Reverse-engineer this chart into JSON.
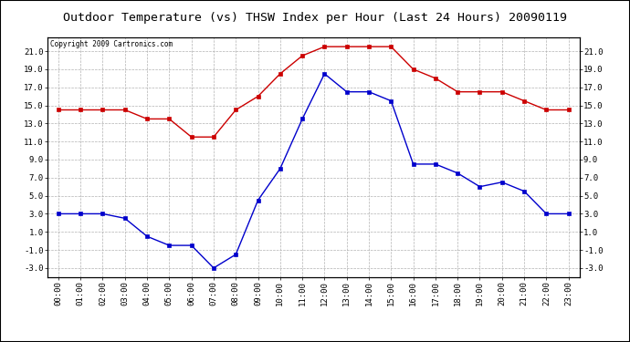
{
  "title": "Outdoor Temperature (vs) THSW Index per Hour (Last 24 Hours) 20090119",
  "copyright": "Copyright 2009 Cartronics.com",
  "hours": [
    "00:00",
    "01:00",
    "02:00",
    "03:00",
    "04:00",
    "05:00",
    "06:00",
    "07:00",
    "08:00",
    "09:00",
    "10:00",
    "11:00",
    "12:00",
    "13:00",
    "14:00",
    "15:00",
    "16:00",
    "17:00",
    "18:00",
    "19:00",
    "20:00",
    "21:00",
    "22:00",
    "23:00"
  ],
  "red_data": [
    14.5,
    14.5,
    14.5,
    14.5,
    13.5,
    13.5,
    11.5,
    11.5,
    14.5,
    16.0,
    18.5,
    20.5,
    21.5,
    21.5,
    21.5,
    21.5,
    19.0,
    18.0,
    16.5,
    16.5,
    16.5,
    15.5,
    14.5,
    14.5
  ],
  "blue_data": [
    3.0,
    3.0,
    3.0,
    2.5,
    0.5,
    -0.5,
    -0.5,
    -3.0,
    -1.5,
    4.5,
    8.0,
    13.5,
    18.5,
    16.5,
    16.5,
    15.5,
    8.5,
    8.5,
    7.5,
    6.0,
    6.5,
    5.5,
    3.0,
    3.0
  ],
  "ylim": [
    -4.0,
    22.5
  ],
  "yticks": [
    -3.0,
    -1.0,
    1.0,
    3.0,
    5.0,
    7.0,
    9.0,
    11.0,
    13.0,
    15.0,
    17.0,
    19.0,
    21.0
  ],
  "red_color": "#cc0000",
  "blue_color": "#0000cc",
  "grid_color": "#aaaaaa",
  "plot_bg_color": "#ffffff",
  "title_color": "#000000"
}
